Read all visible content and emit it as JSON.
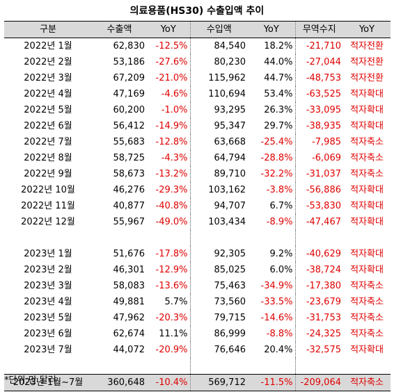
{
  "title": "의료용품(HS30) 수출입액 추이",
  "headers": [
    "구분",
    "수출액",
    "YoY",
    "수입액",
    "YoY",
    "무역수지",
    "YoY"
  ],
  "rows_2022": [
    {
      "period": "2022년 1월",
      "export": "62,830",
      "export_yoy": "-12.5%",
      "import": "84,540",
      "import_yoy": "18.2%",
      "balance": "-21,710",
      "status": "적자전환"
    },
    {
      "period": "2022년 2월",
      "export": "53,186",
      "export_yoy": "-27.6%",
      "import": "80,230",
      "import_yoy": "44.0%",
      "balance": "-27,044",
      "status": "적자전환"
    },
    {
      "period": "2022년 3월",
      "export": "67,209",
      "export_yoy": "-21.0%",
      "import": "115,962",
      "import_yoy": "44.7%",
      "balance": "-48,753",
      "status": "적자전환"
    },
    {
      "period": "2022년 4월",
      "export": "47,169",
      "export_yoy": "-4.6%",
      "import": "110,694",
      "import_yoy": "53.4%",
      "balance": "-63,525",
      "status": "적자확대"
    },
    {
      "period": "2022년 5월",
      "export": "60,200",
      "export_yoy": "-1.0%",
      "import": "93,295",
      "import_yoy": "26.3%",
      "balance": "-33,095",
      "status": "적자확대"
    },
    {
      "period": "2022년 6월",
      "export": "56,412",
      "export_yoy": "-14.9%",
      "import": "95,347",
      "import_yoy": "29.7%",
      "balance": "-38,935",
      "status": "적자확대"
    },
    {
      "period": "2022년 7월",
      "export": "55,683",
      "export_yoy": "-12.8%",
      "import": "63,668",
      "import_yoy": "-25.4%",
      "balance": "-7,985",
      "status": "적자축소"
    },
    {
      "period": "2022년 8월",
      "export": "58,725",
      "export_yoy": "-4.3%",
      "import": "64,794",
      "import_yoy": "-28.8%",
      "balance": "-6,069",
      "status": "적자축소"
    },
    {
      "period": "2022년 9월",
      "export": "58,673",
      "export_yoy": "-13.2%",
      "import": "89,710",
      "import_yoy": "-32.2%",
      "balance": "-31,037",
      "status": "적자축소"
    },
    {
      "period": "2022년 10월",
      "export": "46,276",
      "export_yoy": "-29.3%",
      "import": "103,162",
      "import_yoy": "-3.8%",
      "balance": "-56,886",
      "status": "적자확대"
    },
    {
      "period": "2022년 11월",
      "export": "40,877",
      "export_yoy": "-40.8%",
      "import": "94,707",
      "import_yoy": "6.7%",
      "balance": "-53,830",
      "status": "적자확대"
    },
    {
      "period": "2022년 12월",
      "export": "55,967",
      "export_yoy": "-49.0%",
      "import": "103,434",
      "import_yoy": "-8.9%",
      "balance": "-47,467",
      "status": "적자확대"
    }
  ],
  "rows_2023": [
    {
      "period": "2023년 1월",
      "export": "51,676",
      "export_yoy": "-17.8%",
      "import": "92,305",
      "import_yoy": "9.2%",
      "balance": "-40,629",
      "status": "적자확대"
    },
    {
      "period": "2023년 2월",
      "export": "46,301",
      "export_yoy": "-12.9%",
      "import": "85,025",
      "import_yoy": "6.0%",
      "balance": "-38,724",
      "status": "적자확대"
    },
    {
      "period": "2023년 3월",
      "export": "58,083",
      "export_yoy": "-13.6%",
      "import": "75,463",
      "import_yoy": "-34.9%",
      "balance": "-17,380",
      "status": "적자축소"
    },
    {
      "period": "2023년 4월",
      "export": "49,881",
      "export_yoy": "5.7%",
      "import": "73,560",
      "import_yoy": "-33.5%",
      "balance": "-23,679",
      "status": "적자축소"
    },
    {
      "period": "2023년 5월",
      "export": "47,962",
      "export_yoy": "-20.3%",
      "import": "79,715",
      "import_yoy": "-14.6%",
      "balance": "-31,753",
      "status": "적자축소"
    },
    {
      "period": "2023년 6월",
      "export": "62,674",
      "export_yoy": "11.1%",
      "import": "86,999",
      "import_yoy": "-8.8%",
      "balance": "-24,325",
      "status": "적자축소"
    },
    {
      "period": "2023년 7월",
      "export": "44,072",
      "export_yoy": "-20.9%",
      "import": "76,646",
      "import_yoy": "20.4%",
      "balance": "-32,575",
      "status": "적자확대"
    }
  ],
  "total": {
    "period": "2023년 1월~7월",
    "export": "360,648",
    "export_yoy": "-10.4%",
    "import": "569,712",
    "import_yoy": "-11.5%",
    "balance": "-209,064",
    "status": "적자축소"
  },
  "note": "*단위:만 달러",
  "colors": {
    "header_bg": "#d9d9d9",
    "negative": "#e00000"
  }
}
